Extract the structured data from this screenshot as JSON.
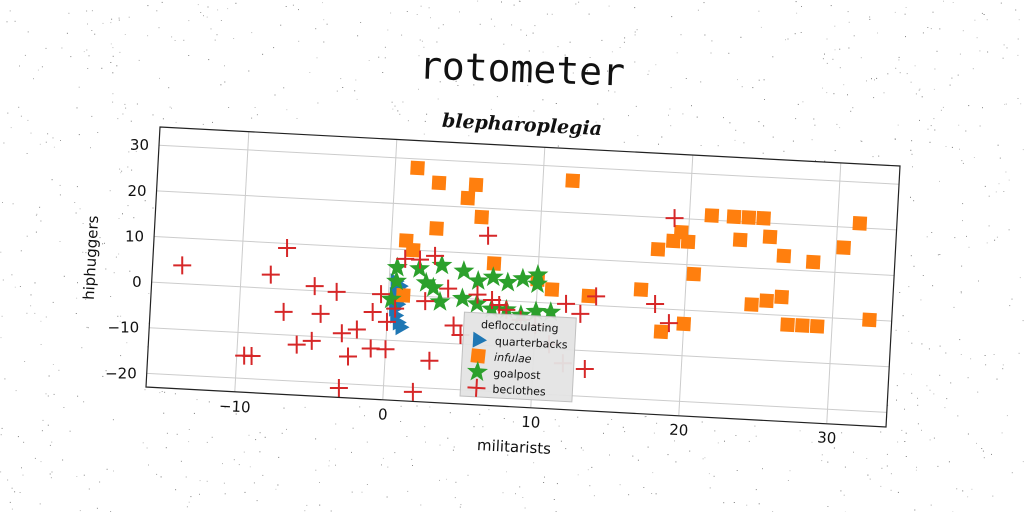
{
  "chart_data": {
    "type": "scatter",
    "title": "rotometer",
    "subtitle": "blepharoplegia",
    "xlabel": "militarists",
    "ylabel": "hiphuggers",
    "xlim": [
      -16,
      34
    ],
    "ylim": [
      -23,
      34
    ],
    "xticks": [
      -10,
      0,
      10,
      20,
      30
    ],
    "yticks": [
      -20,
      -10,
      0,
      10,
      20,
      30
    ],
    "grid": true,
    "legend": {
      "title": "deflocculating",
      "placement": "lower-center"
    },
    "colors": {
      "quarterbacks": "#1f77b4",
      "infulae": "#ff7f0e",
      "goalpost": "#2ca02c",
      "beclothes": "#d62728"
    },
    "series": [
      {
        "name": "quarterbacks",
        "marker": "triangle-right",
        "points": [
          [
            0.5,
            3
          ],
          [
            0.6,
            1.5
          ],
          [
            0.5,
            0
          ],
          [
            0.6,
            -1.5
          ],
          [
            0.5,
            -3
          ],
          [
            0.6,
            -4.5
          ],
          [
            0.8,
            -6
          ],
          [
            1,
            -7
          ],
          [
            0.7,
            -2
          ],
          [
            0.8,
            2
          ]
        ]
      },
      {
        "name": "infulae",
        "marker": "square",
        "points": [
          [
            1.5,
            28
          ],
          [
            3,
            25
          ],
          [
            5.5,
            25
          ],
          [
            5,
            22
          ],
          [
            6,
            18
          ],
          [
            3,
            15
          ],
          [
            1,
            12
          ],
          [
            1.5,
            10
          ],
          [
            7,
            8
          ],
          [
            10,
            5
          ],
          [
            11,
            3
          ],
          [
            13.5,
            2
          ],
          [
            17,
            4
          ],
          [
            18,
            13
          ],
          [
            19,
            15
          ],
          [
            19.5,
            17
          ],
          [
            20,
            15
          ],
          [
            20.5,
            8
          ],
          [
            21.5,
            21
          ],
          [
            23,
            21
          ],
          [
            24,
            21
          ],
          [
            25,
            21
          ],
          [
            23.5,
            16
          ],
          [
            25.5,
            17
          ],
          [
            26.5,
            13
          ],
          [
            28.5,
            12
          ],
          [
            30.5,
            15.5
          ],
          [
            31.5,
            21
          ],
          [
            32.5,
            0
          ],
          [
            24.5,
            2
          ],
          [
            25.5,
            3
          ],
          [
            26.5,
            4
          ],
          [
            27,
            -2
          ],
          [
            28,
            -2
          ],
          [
            29,
            -2
          ],
          [
            18.5,
            -5
          ],
          [
            20,
            -3
          ],
          [
            1,
            0
          ],
          [
            12,
            27
          ]
        ]
      },
      {
        "name": "goalpost",
        "marker": "star",
        "points": [
          [
            0.5,
            6
          ],
          [
            2,
            6
          ],
          [
            3.5,
            7
          ],
          [
            5,
            6
          ],
          [
            6,
            4
          ],
          [
            7,
            5
          ],
          [
            8,
            4
          ],
          [
            9,
            5
          ],
          [
            10,
            4
          ],
          [
            10,
            6
          ],
          [
            2.5,
            3
          ],
          [
            3.5,
            -1
          ],
          [
            5,
            0
          ],
          [
            6,
            -1
          ],
          [
            7,
            -2
          ],
          [
            8,
            -2
          ],
          [
            9,
            -3
          ],
          [
            10,
            -2
          ],
          [
            11,
            -2
          ],
          [
            3,
            2
          ],
          [
            0.5,
            3
          ],
          [
            0.2,
            -1
          ]
        ]
      },
      {
        "name": "beclothes",
        "marker": "plus",
        "points": [
          [
            -14,
            4
          ],
          [
            -7,
            9
          ],
          [
            -8,
            3
          ],
          [
            -7,
            -5
          ],
          [
            -6,
            -12
          ],
          [
            -5,
            -11
          ],
          [
            -4.5,
            -5
          ],
          [
            -5,
            1
          ],
          [
            -3.5,
            0
          ],
          [
            -3,
            -9
          ],
          [
            -2.5,
            -14
          ],
          [
            -3,
            -21
          ],
          [
            -2,
            -8
          ],
          [
            -1,
            -12
          ],
          [
            -1,
            -4
          ],
          [
            -0.5,
            0
          ],
          [
            0,
            -6
          ],
          [
            0,
            -12
          ],
          [
            0.5,
            -3
          ],
          [
            1,
            8
          ],
          [
            2,
            8
          ],
          [
            2.5,
            -1
          ],
          [
            3,
            -14
          ],
          [
            2,
            -21
          ],
          [
            3,
            9
          ],
          [
            4,
            2
          ],
          [
            4.5,
            -6
          ],
          [
            5,
            -8
          ],
          [
            6,
            1
          ],
          [
            6.5,
            14
          ],
          [
            7,
            0
          ],
          [
            7.5,
            -1
          ],
          [
            8,
            -2
          ],
          [
            9,
            -4
          ],
          [
            10,
            -5
          ],
          [
            11,
            -9
          ],
          [
            12,
            -13
          ],
          [
            12,
            0
          ],
          [
            13,
            -2
          ],
          [
            13.5,
            -14
          ],
          [
            14,
            2
          ],
          [
            18,
            1
          ],
          [
            19,
            -3
          ],
          [
            19,
            20
          ],
          [
            -9,
            -15
          ],
          [
            -9.5,
            -15
          ]
        ]
      }
    ]
  }
}
